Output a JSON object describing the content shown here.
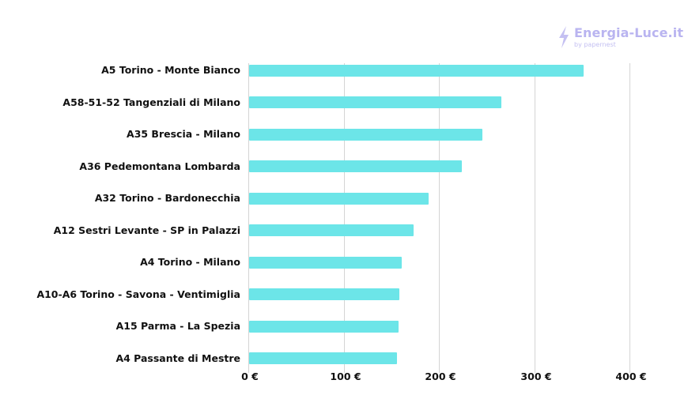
{
  "logo": {
    "title": "Energia-Luce.it",
    "subtitle": "by papernest",
    "icon": "lightning-bolt-icon",
    "color": "#b9b4f0"
  },
  "axis": {
    "ticks": [
      "0 €",
      "100 €",
      "200 €",
      "300 €",
      "400 €"
    ]
  },
  "bar_color": "#6ce5e8",
  "chart_data": {
    "type": "bar",
    "orientation": "horizontal",
    "title": "",
    "xlabel": "",
    "ylabel": "",
    "categories": [
      "A5 Torino - Monte Bianco",
      "A58-51-52 Tangenziali di Milano",
      "A35 Brescia - Milano",
      "A36 Pedemontana Lombarda",
      "A32 Torino - Bardonecchia",
      "A12 Sestri Levante - SP in Palazzi",
      "A4 Torino - Milano",
      "A10-A6 Torino - Savona - Ventimiglia",
      "A15 Parma - La Spezia",
      "A4 Passante di Mestre"
    ],
    "values": [
      351,
      265,
      245,
      223,
      188,
      173,
      160,
      158,
      157,
      155
    ],
    "unit": "€",
    "xlim": [
      0,
      400
    ],
    "xticks": [
      0,
      100,
      200,
      300,
      400
    ],
    "grid": "vertical",
    "legend": null
  }
}
